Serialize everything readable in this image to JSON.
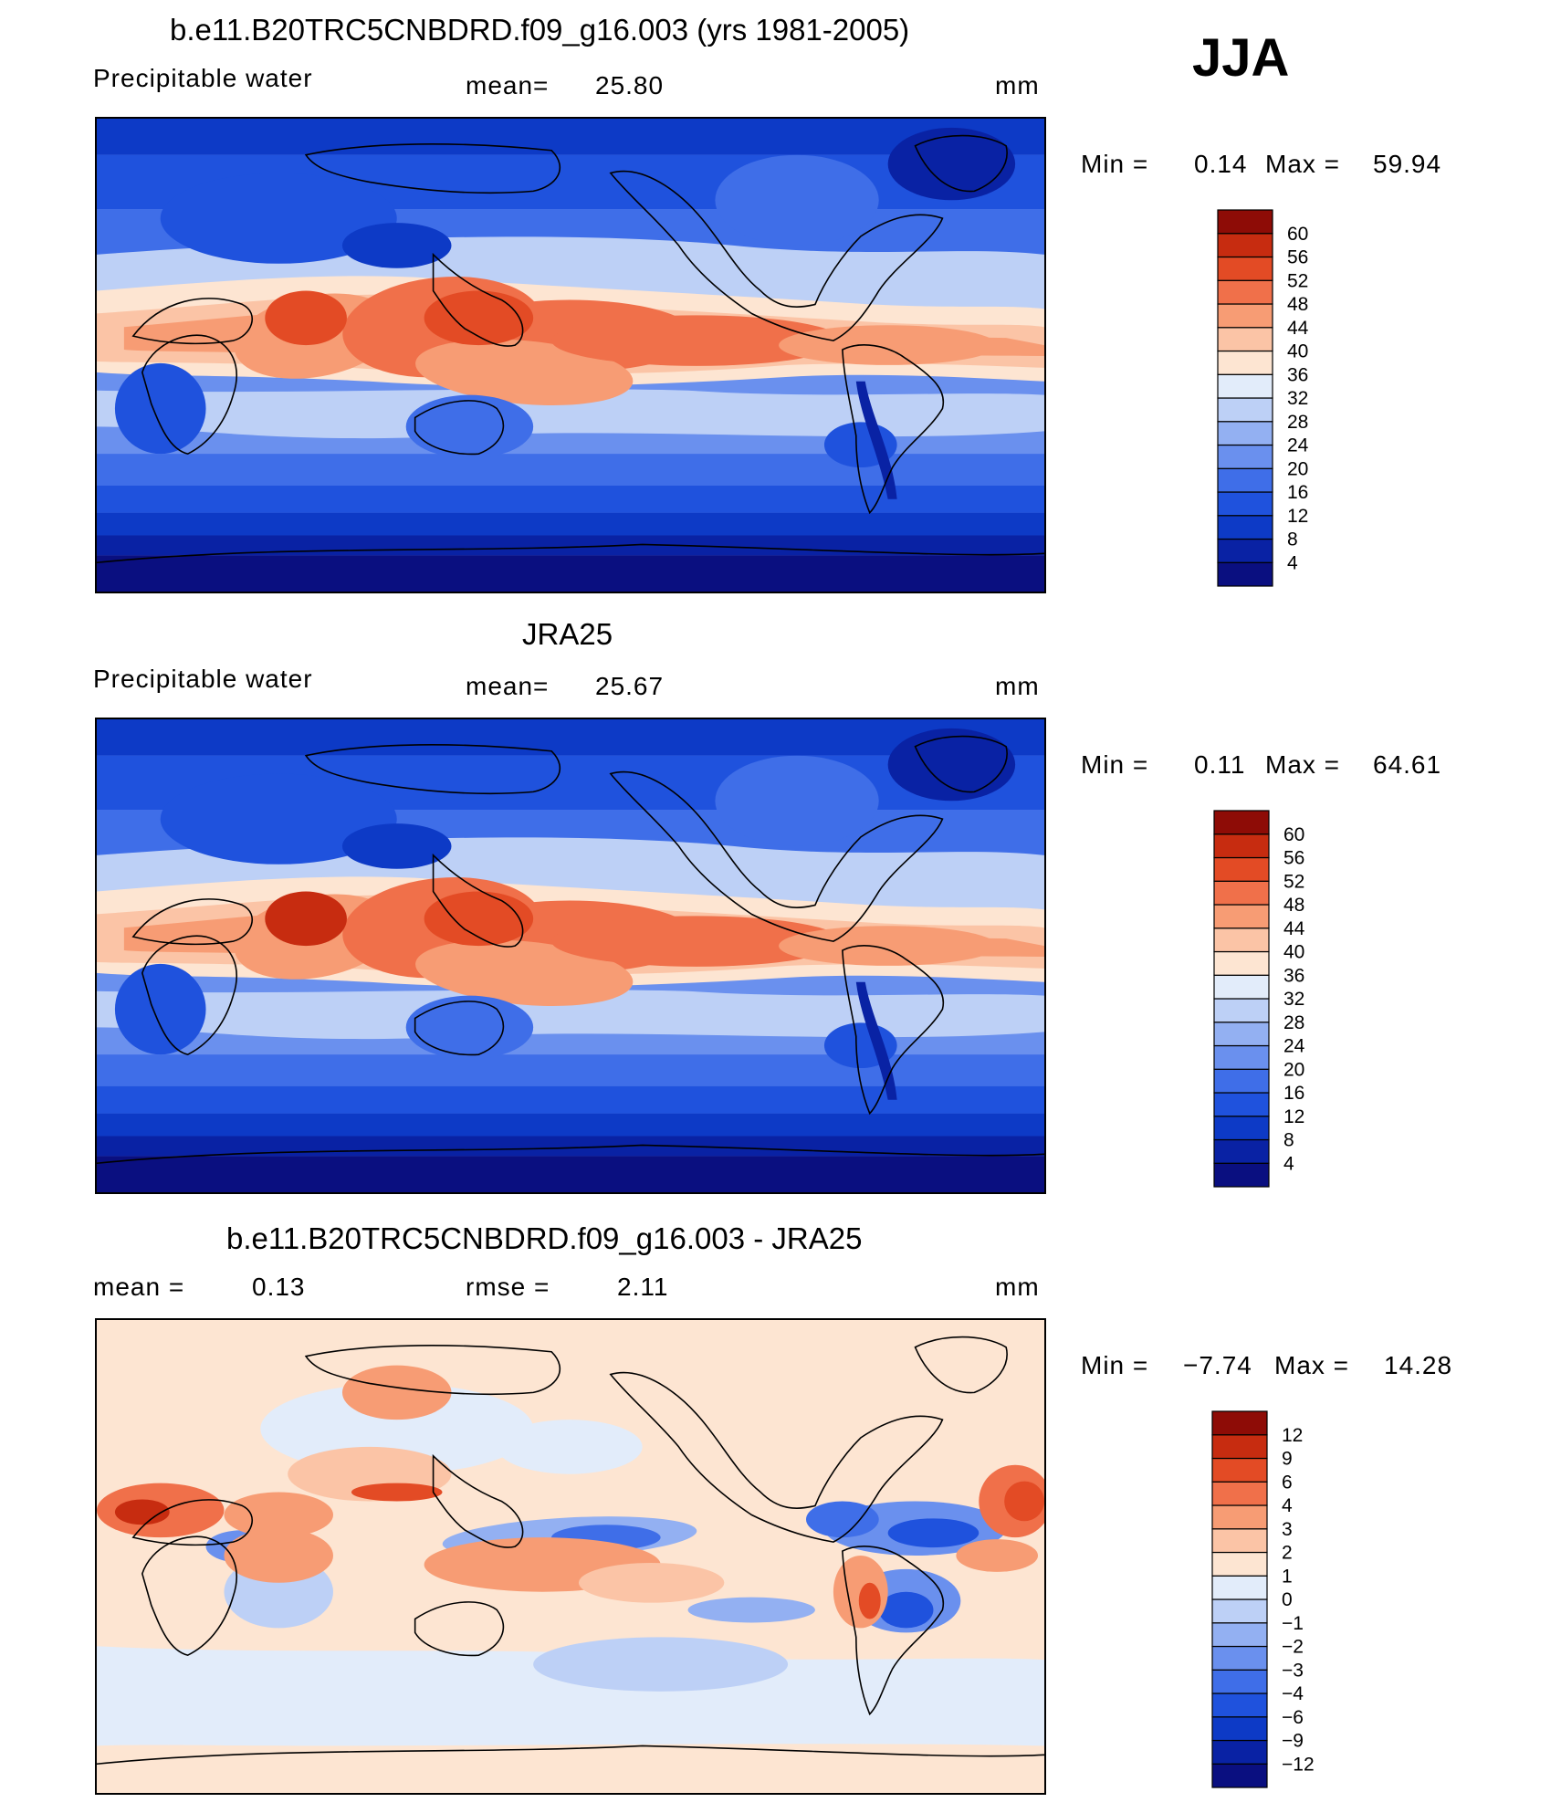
{
  "season": "JJA",
  "panels": [
    {
      "id": "model",
      "title": "b.e11.B20TRC5CNBDRD.f09_g16.003 (yrs 1981-2005)",
      "variable": "Precipitable water",
      "mean_label": "mean=",
      "mean_value": "25.80",
      "units": "mm",
      "min_label": "Min =",
      "min_value": "0.14",
      "max_label": "Max =",
      "max_value": "59.94"
    },
    {
      "id": "obs",
      "title": "JRA25",
      "variable": "Precipitable water",
      "mean_label": "mean=",
      "mean_value": "25.67",
      "units": "mm",
      "min_label": "Min =",
      "min_value": "0.11",
      "max_label": "Max =",
      "max_value": "64.61"
    },
    {
      "id": "diff",
      "title": "b.e11.B20TRC5CNBDRD.f09_g16.003 - JRA25",
      "mean_label": "mean =",
      "mean_value": "0.13",
      "rmse_label": "rmse =",
      "rmse_value": "2.11",
      "units": "mm",
      "min_label": "Min =",
      "min_value": "−7.74",
      "max_label": "Max =",
      "max_value": "14.28"
    }
  ],
  "chart_data": [
    {
      "type": "heatmap",
      "title": "b.e11.B20TRC5CNBDRD.f09_g16.003 (yrs 1981-2005)",
      "variable": "Precipitable water",
      "units": "mm",
      "mean": 25.8,
      "min": 0.14,
      "max": 59.94,
      "colorbar_levels": [
        4,
        8,
        12,
        16,
        20,
        24,
        28,
        32,
        36,
        40,
        44,
        48,
        52,
        56,
        60
      ],
      "colorbar_colors": [
        "#0a0f80",
        "#0922a4",
        "#0d3ac6",
        "#1f52dd",
        "#3f6ee8",
        "#6a90ee",
        "#93b0f2",
        "#bdd0f6",
        "#e2ecfa",
        "#fde5d2",
        "#fbc4a6",
        "#f79c74",
        "#f0704a",
        "#e34b25",
        "#c72c10",
        "#8e0c06"
      ],
      "regions": {
        "tropics": "44-56",
        "midlatitudes": "16-32",
        "poles": "0-8"
      }
    },
    {
      "type": "heatmap",
      "title": "JRA25",
      "variable": "Precipitable water",
      "units": "mm",
      "mean": 25.67,
      "min": 0.11,
      "max": 64.61,
      "colorbar_levels": [
        4,
        8,
        12,
        16,
        20,
        24,
        28,
        32,
        36,
        40,
        44,
        48,
        52,
        56,
        60
      ],
      "colorbar_colors": [
        "#0a0f80",
        "#0922a4",
        "#0d3ac6",
        "#1f52dd",
        "#3f6ee8",
        "#6a90ee",
        "#93b0f2",
        "#bdd0f6",
        "#e2ecfa",
        "#fde5d2",
        "#fbc4a6",
        "#f79c74",
        "#f0704a",
        "#e34b25",
        "#c72c10",
        "#8e0c06"
      ],
      "regions": {
        "tropics": "44-60",
        "midlatitudes": "16-32",
        "poles": "0-8"
      }
    },
    {
      "type": "heatmap",
      "title": "b.e11.B20TRC5CNBDRD.f09_g16.003 - JRA25",
      "units": "mm",
      "mean": 0.13,
      "rmse": 2.11,
      "min": -7.74,
      "max": 14.28,
      "colorbar_levels": [
        -12,
        -9,
        -6,
        -4,
        -3,
        -2,
        -1,
        0,
        1,
        2,
        3,
        4,
        6,
        9,
        12
      ],
      "colorbar_level_labels": [
        "−12",
        "−9",
        "−6",
        "−4",
        "−3",
        "−2",
        "−1",
        "0",
        "1",
        "2",
        "3",
        "4",
        "6",
        "9",
        "12"
      ],
      "colorbar_colors": [
        "#0a0f80",
        "#0922a4",
        "#0d3ac6",
        "#1f52dd",
        "#3f6ee8",
        "#6a90ee",
        "#93b0f2",
        "#bdd0f6",
        "#e2ecfa",
        "#fde5d2",
        "#fbc4a6",
        "#f79c74",
        "#f0704a",
        "#e34b25",
        "#c72c10",
        "#8e0c06"
      ]
    }
  ]
}
